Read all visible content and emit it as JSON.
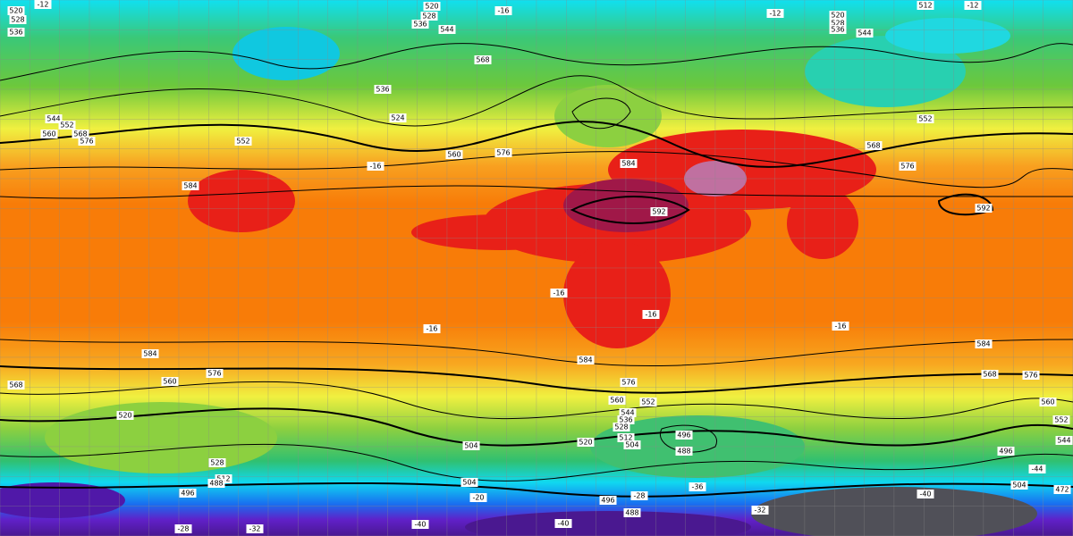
{
  "height_labels": [
    520,
    528,
    536,
    520,
    528,
    536,
    544,
    568,
    536,
    524,
    552,
    544,
    552,
    560,
    568,
    576,
    560,
    576,
    584,
    592,
    584,
    592,
    520,
    528,
    536,
    544,
    512,
    552,
    568,
    576,
    584,
    576,
    568,
    584,
    576,
    568,
    560,
    584,
    576,
    560,
    552,
    544,
    536,
    528,
    520,
    512,
    504,
    496,
    488,
    504,
    504,
    528,
    512,
    520,
    496,
    488,
    496,
    488,
    496,
    504,
    472,
    560,
    552,
    544
  ],
  "temperature_labels": [
    -12,
    -16,
    -12,
    -12,
    -16,
    -16,
    -16,
    -16,
    -16,
    -20,
    -28,
    -32,
    -36,
    -40,
    -40,
    -40,
    -44,
    -28,
    -32
  ]
}
